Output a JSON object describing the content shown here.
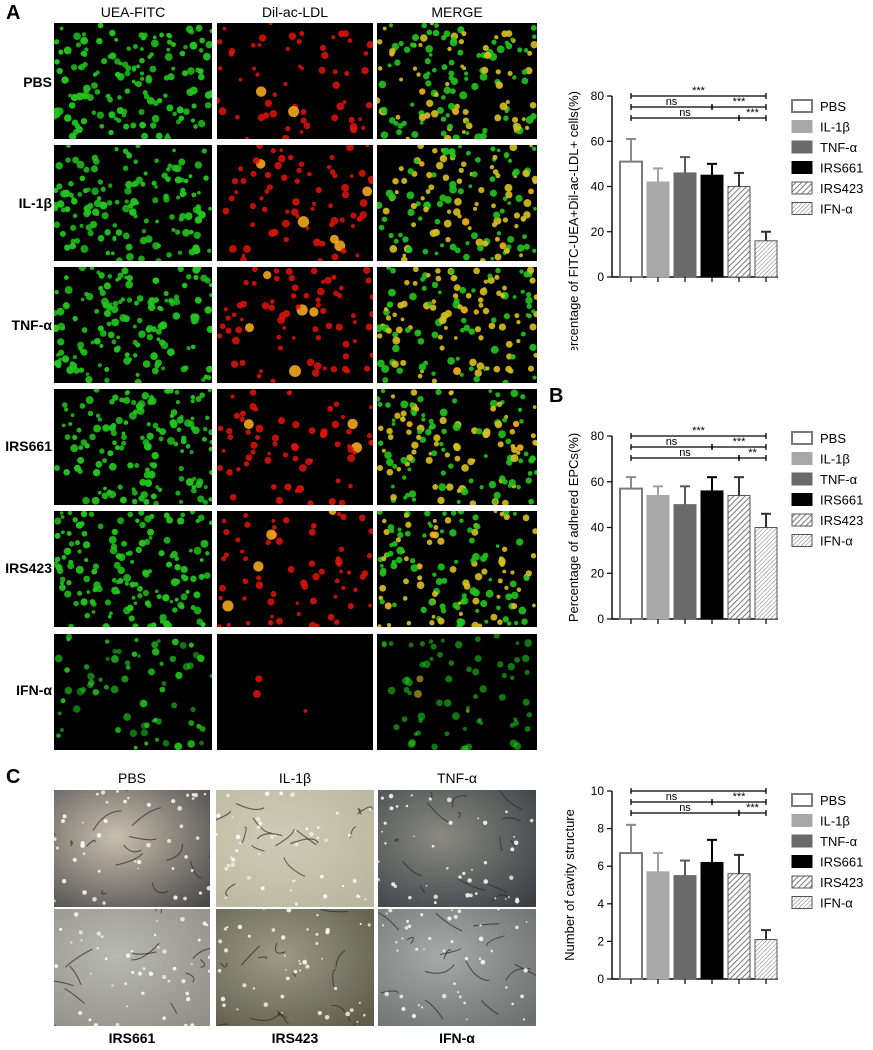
{
  "panel_a": {
    "letter": "A",
    "columns": [
      "UEA-FITC",
      "Dil-ac-LDL",
      "MERGE"
    ],
    "rows": [
      "PBS",
      "IL-1β",
      "TNF-α",
      "IRS661",
      "IRS423",
      "IFN-α"
    ]
  },
  "panel_b": {
    "letter": "B"
  },
  "panel_c": {
    "letter": "C",
    "photo_labels_top": [
      "PBS",
      "IL-1β",
      "TNF-α"
    ],
    "photo_labels_bottom": [
      "IRS661",
      "IRS423",
      "IFN-α"
    ]
  },
  "legend_items": [
    "PBS",
    "IL-1β",
    "TNF-α",
    "IRS661",
    "IRS423",
    "IFN-α"
  ],
  "colors": {
    "green_cells": "#22c41e",
    "red_cells": "#e0140c",
    "pbs": "#ffffff",
    "il1b": "#a8a8a8",
    "tnfa": "#6a6a6a",
    "irs661": "#000000",
    "irs423": "#cfcfcf",
    "ifna": "#e8e8e8"
  },
  "chart_data": [
    {
      "type": "bar",
      "ylabel": "Percentage of FITC-UEA+Dil-ac-LDL+ cells(%)",
      "ylim": [
        0,
        80
      ],
      "yticks": [
        0,
        20,
        40,
        60,
        80
      ],
      "categories": [
        "PBS",
        "IL-1β",
        "TNF-α",
        "IRS661",
        "IRS423",
        "IFN-α"
      ],
      "values": [
        51,
        42,
        46,
        45,
        40,
        16
      ],
      "errors": [
        10,
        6,
        7,
        5,
        6,
        4
      ],
      "significance": [
        {
          "from": "PBS",
          "to": "IFN-α",
          "label": "***"
        },
        {
          "from": "PBS",
          "to": "IRS661",
          "label": "ns"
        },
        {
          "from": "IRS661",
          "to": "IFN-α",
          "label": "***"
        },
        {
          "from": "PBS",
          "to": "IRS423",
          "label": "ns"
        },
        {
          "from": "IRS423",
          "to": "IFN-α",
          "label": "***"
        }
      ]
    },
    {
      "type": "bar",
      "ylabel": "Percentage of adhered EPCs(%)",
      "ylim": [
        0,
        80
      ],
      "yticks": [
        0,
        20,
        40,
        60,
        80
      ],
      "categories": [
        "PBS",
        "IL-1β",
        "TNF-α",
        "IRS661",
        "IRS423",
        "IFN-α"
      ],
      "values": [
        57,
        54,
        50,
        56,
        54,
        40
      ],
      "errors": [
        5,
        4,
        8,
        6,
        8,
        6
      ],
      "significance": [
        {
          "from": "PBS",
          "to": "IFN-α",
          "label": "***"
        },
        {
          "from": "PBS",
          "to": "IRS661",
          "label": "ns"
        },
        {
          "from": "IRS661",
          "to": "IFN-α",
          "label": "***"
        },
        {
          "from": "PBS",
          "to": "IRS423",
          "label": "ns"
        },
        {
          "from": "IRS423",
          "to": "IFN-α",
          "label": "**"
        }
      ]
    },
    {
      "type": "bar",
      "ylabel": "Number of cavity structure",
      "ylim": [
        0,
        10
      ],
      "yticks": [
        0,
        2,
        4,
        6,
        8,
        10
      ],
      "categories": [
        "PBS",
        "IL-1β",
        "TNF-α",
        "IRS661",
        "IRS423",
        "IFN-α"
      ],
      "values": [
        6.7,
        5.7,
        5.5,
        6.2,
        5.6,
        2.1
      ],
      "errors": [
        1.5,
        1.0,
        0.8,
        1.2,
        1.0,
        0.5
      ],
      "significance": [
        {
          "from": "PBS",
          "to": "IFN-α",
          "label": "***"
        },
        {
          "from": "PBS",
          "to": "IRS661",
          "label": "ns"
        },
        {
          "from": "IRS661",
          "to": "IFN-α",
          "label": "***"
        },
        {
          "from": "PBS",
          "to": "IRS423",
          "label": "ns"
        },
        {
          "from": "IRS423",
          "to": "IFN-α",
          "label": "***"
        }
      ]
    }
  ]
}
